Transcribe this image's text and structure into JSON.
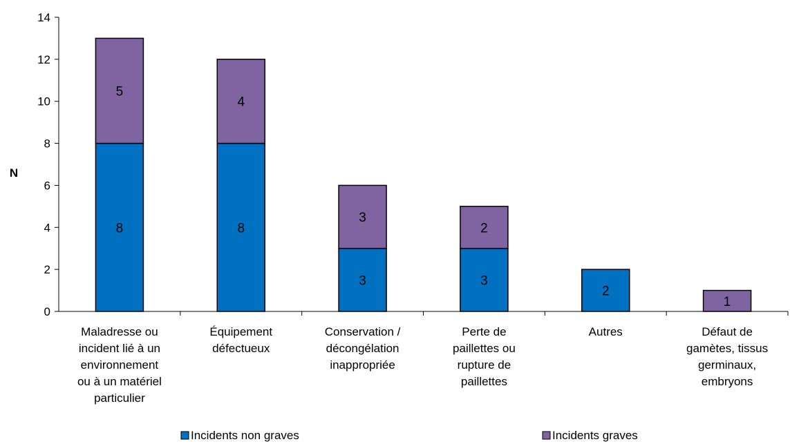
{
  "chart_data": {
    "type": "bar",
    "stacked": true,
    "title": "",
    "xlabel": "",
    "ylabel": "N",
    "ylim": [
      0,
      14
    ],
    "yticks": [
      0,
      2,
      4,
      6,
      8,
      10,
      12,
      14
    ],
    "grid": false,
    "legend_position": "bottom",
    "categories": [
      [
        "Maladresse ou",
        "incident lié à un",
        "environnement",
        "ou à un matériel",
        "particulier"
      ],
      [
        "Équipement",
        "défectueux"
      ],
      [
        "Conservation /",
        "décongélation",
        "inappropriée"
      ],
      [
        "Perte de",
        "paillettes ou",
        "rupture de",
        "paillettes"
      ],
      [
        "Autres"
      ],
      [
        "Défaut de",
        "gamètes, tissus",
        "germinaux,",
        "embryons"
      ]
    ],
    "series": [
      {
        "name": "Incidents non graves",
        "color": "#0070C0",
        "values": [
          8,
          8,
          3,
          3,
          2,
          0
        ]
      },
      {
        "name": "Incidents graves",
        "color": "#8064A2",
        "values": [
          5,
          4,
          3,
          2,
          0,
          1
        ]
      }
    ]
  }
}
